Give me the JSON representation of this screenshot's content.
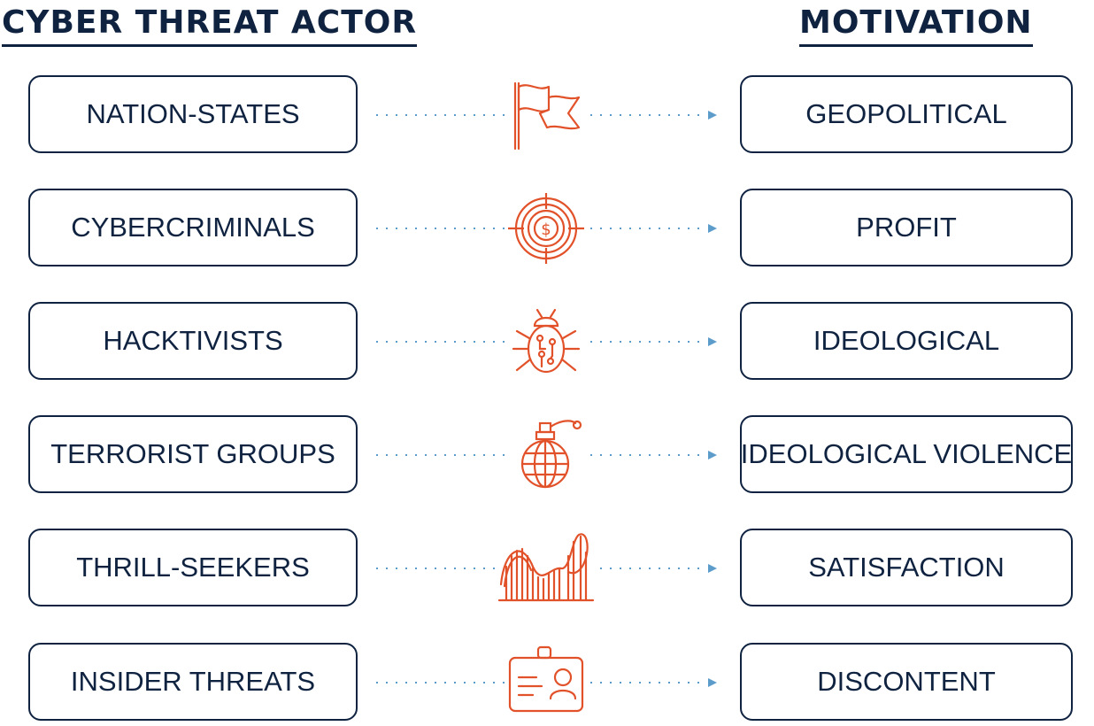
{
  "headings": {
    "actor": "CYBER THREAT ACTOR",
    "motivation": "MOTIVATION"
  },
  "colors": {
    "navy": "#0f2341",
    "accent_orange": "#e2522a",
    "connector_blue": "#5b9ccb"
  },
  "rows": [
    {
      "actor": "NATION-STATES",
      "motivation": "GEOPOLITICAL",
      "icon": "flag-icon"
    },
    {
      "actor": "CYBERCRIMINALS",
      "motivation": "PROFIT",
      "icon": "dollar-target-icon"
    },
    {
      "actor": "HACKTIVISTS",
      "motivation": "IDEOLOGICAL",
      "icon": "bug-circuit-icon"
    },
    {
      "actor": "TERRORIST GROUPS",
      "motivation": "IDEOLOGICAL VIOLENCE",
      "icon": "grenade-globe-icon"
    },
    {
      "actor": "THRILL-SEEKERS",
      "motivation": "SATISFACTION",
      "icon": "roller-coaster-icon"
    },
    {
      "actor": "INSIDER THREATS",
      "motivation": "DISCONTENT",
      "icon": "id-badge-icon"
    }
  ]
}
